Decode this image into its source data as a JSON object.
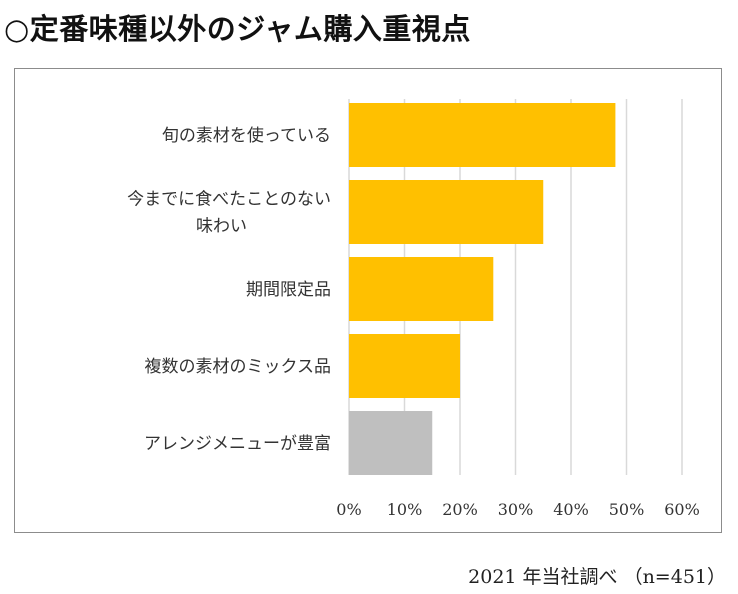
{
  "title": "○定番味種以外のジャム購入重視点",
  "source": "2021 年当社調べ （n=451）",
  "colors": {
    "highlight": "#FFC000",
    "muted": "#BFBFBF",
    "grid": "#D9D9D9"
  },
  "chart_data": {
    "type": "bar",
    "orientation": "horizontal",
    "categories": [
      [
        "旬の素材を使っている"
      ],
      [
        "今までに食べたことのない",
        "味わい"
      ],
      [
        "期間限定品"
      ],
      [
        "複数の素材のミックス品"
      ],
      [
        "アレンジメニューが豊富"
      ]
    ],
    "values": [
      48,
      35,
      26,
      20,
      15
    ],
    "bar_colors": [
      "#FFC000",
      "#FFC000",
      "#FFC000",
      "#FFC000",
      "#BFBFBF"
    ],
    "xlim": [
      0,
      60
    ],
    "xticks": [
      "0%",
      "10%",
      "20%",
      "30%",
      "40%",
      "50%",
      "60%"
    ],
    "grid": true,
    "unit": "%"
  }
}
